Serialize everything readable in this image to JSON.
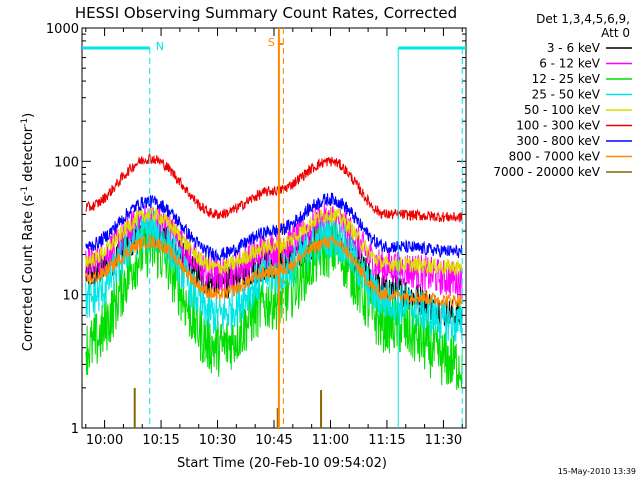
{
  "chart_data": {
    "type": "line",
    "title": "HESSI Observing Summary Count Rates, Corrected",
    "xlabel": "Start Time (20-Feb-10 09:54:02)",
    "ylabel_main": "Corrected Count Rate (s",
    "ylabel_sup1": "-1",
    "ylabel_mid": " detector",
    "ylabel_sup2": "-1",
    "ylabel_end": ")",
    "ylog": true,
    "ylim": [
      1,
      1000
    ],
    "xlim_minutes": [
      -6,
      96
    ],
    "x_ticks": [
      {
        "label": "10:00",
        "min": 0
      },
      {
        "label": "10:15",
        "min": 15
      },
      {
        "label": "10:30",
        "min": 30
      },
      {
        "label": "10:45",
        "min": 45
      },
      {
        "label": "11:00",
        "min": 60
      },
      {
        "label": "11:15",
        "min": 75
      },
      {
        "label": "11:30",
        "min": 90
      }
    ],
    "y_ticks": [
      {
        "label": "1",
        "v": 1
      },
      {
        "label": "10",
        "v": 10
      },
      {
        "label": "100",
        "v": 100
      },
      {
        "label": "1000",
        "v": 1000
      }
    ],
    "legend_title_1": "Det 1,3,4,5,6,9,",
    "legend_title_2": "Att 0",
    "legend_position": "right",
    "footer_timestamp": "15-May-2010 13:39",
    "markers": [
      {
        "label": "N",
        "min": 12,
        "color": "#00e5e5"
      },
      {
        "label": "S",
        "min": 46,
        "color": "#ff8800"
      }
    ],
    "series": [
      {
        "name": "3 - 6 keV",
        "color": "#000000",
        "x": [
          -5,
          12,
          30,
          45,
          60,
          75,
          95
        ],
        "y": [
          14,
          28,
          12,
          17,
          27,
          11,
          7
        ]
      },
      {
        "name": "6 - 12 keV",
        "color": "#ff00ff",
        "x": [
          -5,
          12,
          30,
          45,
          60,
          75,
          95
        ],
        "y": [
          17,
          36,
          14,
          22,
          36,
          16,
          13
        ]
      },
      {
        "name": "12 - 25 keV",
        "color": "#00dd00",
        "x": [
          -5,
          12,
          30,
          45,
          60,
          75,
          95
        ],
        "y": [
          4,
          22,
          4,
          9,
          22,
          6,
          3
        ]
      },
      {
        "name": "25 - 50 keV",
        "color": "#00e5e5",
        "x": [
          -5,
          12,
          30,
          45,
          60,
          75,
          95
        ],
        "y": [
          9,
          30,
          7,
          14,
          27,
          9,
          6
        ]
      },
      {
        "name": "50 - 100 keV",
        "color": "#dddd00",
        "x": [
          -5,
          12,
          30,
          45,
          60,
          75,
          95
        ],
        "y": [
          18,
          40,
          16,
          23,
          40,
          17,
          16
        ]
      },
      {
        "name": "100 - 300 keV",
        "color": "#ee0000",
        "x": [
          -5,
          12,
          30,
          45,
          60,
          75,
          95
        ],
        "y": [
          45,
          105,
          40,
          60,
          100,
          40,
          38
        ]
      },
      {
        "name": "300 - 800 keV",
        "color": "#0000ff",
        "x": [
          -5,
          12,
          30,
          45,
          60,
          75,
          95
        ],
        "y": [
          23,
          50,
          20,
          30,
          52,
          23,
          21
        ]
      },
      {
        "name": "800 - 7000 keV",
        "color": "#ff8800",
        "x": [
          -5,
          12,
          30,
          45,
          60,
          75,
          95
        ],
        "y": [
          13,
          25,
          10,
          15,
          25,
          10,
          9
        ]
      },
      {
        "name": "7000 - 20000 keV",
        "color": "#886600",
        "x": [
          -5,
          12,
          30,
          45,
          60,
          75,
          95
        ],
        "y": [
          1,
          1,
          1,
          1,
          1,
          1,
          1
        ]
      }
    ]
  }
}
